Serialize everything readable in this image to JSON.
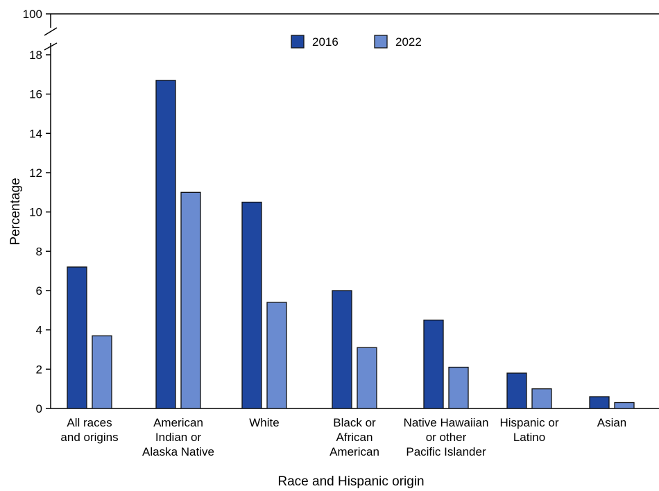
{
  "chart_data": {
    "type": "bar",
    "title": "",
    "xlabel": "Race and Hispanic origin",
    "ylabel": "Percentage",
    "ylim": [
      0,
      18
    ],
    "axis_break": {
      "above": 18,
      "top_tick": 100
    },
    "yticks": [
      0,
      2,
      4,
      6,
      8,
      10,
      12,
      14,
      16,
      18
    ],
    "top_tick_label": "100",
    "legend_position": "top-center",
    "grid": false,
    "categories": [
      [
        "All races",
        "and origins"
      ],
      [
        "American",
        "Indian or",
        "Alaska Native"
      ],
      [
        "White"
      ],
      [
        "Black or",
        "African",
        "American"
      ],
      [
        "Native Hawaiian",
        "or other",
        "Pacific Islander"
      ],
      [
        "Hispanic or",
        "Latino"
      ],
      [
        "Asian"
      ]
    ],
    "series": [
      {
        "name": "2016",
        "color": "#1f47a0",
        "values": [
          7.2,
          16.7,
          10.5,
          6.0,
          4.5,
          1.8,
          0.6
        ]
      },
      {
        "name": "2022",
        "color": "#6a8bd0",
        "values": [
          3.7,
          11.0,
          5.4,
          3.1,
          2.1,
          1.0,
          0.3
        ]
      }
    ]
  }
}
